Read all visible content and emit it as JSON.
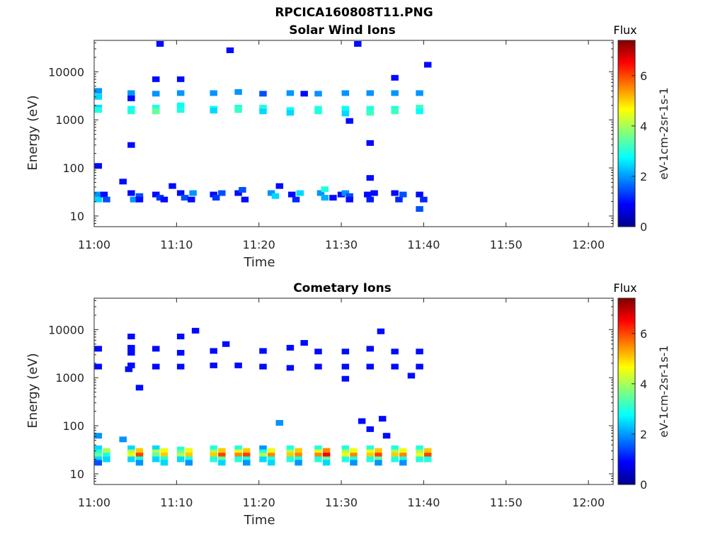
{
  "page_title": "RPCICA160808T11.PNG",
  "colorbar": {
    "label": "Flux",
    "units": "eV-1cm-2sr-1s-1",
    "ticks": [
      "0",
      "2",
      "4",
      "6"
    ],
    "range": [
      0,
      7.4
    ]
  },
  "chart_data": [
    {
      "type": "heatmap",
      "title": "Solar Wind Ions",
      "xlabel": "Time",
      "ylabel": "Energy (eV)",
      "x_ticks": [
        "11:00",
        "11:10",
        "11:20",
        "11:30",
        "11:40",
        "11:50",
        "12:00"
      ],
      "x_range_minutes": [
        0,
        63
      ],
      "y_scale": "log",
      "y_ticks": [
        "10",
        "100",
        "1000",
        "10000"
      ],
      "y_range": [
        6,
        45000
      ],
      "cells": [
        [
          0.5,
          110,
          1
        ],
        [
          0.5,
          28,
          2
        ],
        [
          0.5,
          22,
          2.5
        ],
        [
          1.2,
          28,
          1
        ],
        [
          1.5,
          22,
          1.5
        ],
        [
          3.5,
          52,
          1
        ],
        [
          4.5,
          30,
          1
        ],
        [
          4.8,
          22,
          2
        ],
        [
          5.5,
          26,
          1.5
        ],
        [
          5.5,
          22,
          1
        ],
        [
          4.5,
          300,
          1
        ],
        [
          7.5,
          28,
          1
        ],
        [
          8,
          24,
          1.3
        ],
        [
          8.5,
          22,
          1
        ],
        [
          7.5,
          7000,
          1
        ],
        [
          8,
          38000,
          1
        ],
        [
          9.5,
          42,
          1
        ],
        [
          10.5,
          30,
          1
        ],
        [
          11,
          24,
          1.5
        ],
        [
          11.8,
          22,
          1
        ],
        [
          12,
          30,
          2
        ],
        [
          14.5,
          28,
          1
        ],
        [
          14.8,
          24,
          1.3
        ],
        [
          15.5,
          30,
          1.5
        ],
        [
          16.5,
          28000,
          1
        ],
        [
          17.5,
          30,
          1
        ],
        [
          18,
          35,
          1.5
        ],
        [
          18.3,
          22,
          1
        ],
        [
          21.5,
          30,
          2
        ],
        [
          22,
          26,
          2.5
        ],
        [
          22.5,
          42,
          1
        ],
        [
          24,
          28,
          1
        ],
        [
          24.5,
          22,
          1.2
        ],
        [
          25,
          30,
          2.5
        ],
        [
          27.5,
          30,
          2
        ],
        [
          28,
          36,
          3
        ],
        [
          28,
          24,
          2.2
        ],
        [
          29,
          24,
          1
        ],
        [
          30,
          28,
          1
        ],
        [
          30.5,
          30,
          2
        ],
        [
          31,
          26,
          1.5
        ],
        [
          31,
          22,
          1
        ],
        [
          33.2,
          28,
          1
        ],
        [
          33.5,
          22,
          1.1
        ],
        [
          34,
          30,
          1
        ],
        [
          33.5,
          62,
          1
        ],
        [
          33.5,
          330,
          1
        ],
        [
          36.5,
          30,
          1
        ],
        [
          37,
          22,
          1.2
        ],
        [
          37.5,
          28,
          1.5
        ],
        [
          39.5,
          28,
          1
        ],
        [
          40,
          22,
          1.2
        ],
        [
          39.5,
          14,
          1.5
        ],
        [
          31,
          950,
          1
        ],
        [
          32,
          38000,
          1
        ],
        [
          36.5,
          7500,
          1
        ],
        [
          40.5,
          14000,
          1
        ],
        [
          0.5,
          4000,
          2
        ],
        [
          0.5,
          3000,
          2.5
        ],
        [
          0.5,
          1800,
          2.5
        ],
        [
          0.5,
          1600,
          3
        ],
        [
          4.5,
          3600,
          2
        ],
        [
          4.5,
          2800,
          1
        ],
        [
          4.5,
          1700,
          2.8
        ],
        [
          4.5,
          1500,
          3
        ],
        [
          7.5,
          3500,
          2
        ],
        [
          7.5,
          1800,
          3
        ],
        [
          7.5,
          1500,
          3.5
        ],
        [
          10.5,
          3600,
          2
        ],
        [
          10.5,
          2000,
          2.8
        ],
        [
          10.5,
          1600,
          3
        ],
        [
          10.5,
          7000,
          1
        ],
        [
          14.5,
          3600,
          2
        ],
        [
          14.5,
          1700,
          2.8
        ],
        [
          14.5,
          1550,
          2.5
        ],
        [
          17.5,
          3800,
          2
        ],
        [
          17.5,
          1800,
          3
        ],
        [
          17.5,
          1600,
          3.2
        ],
        [
          20.5,
          3500,
          1.5
        ],
        [
          20.5,
          1800,
          3
        ],
        [
          20.5,
          1500,
          2.5
        ],
        [
          23.8,
          3600,
          2
        ],
        [
          23.8,
          1600,
          2.8
        ],
        [
          23.8,
          1400,
          2.5
        ],
        [
          25.5,
          3500,
          1
        ],
        [
          27.2,
          3500,
          2
        ],
        [
          27.2,
          1700,
          3
        ],
        [
          27.2,
          1500,
          3
        ],
        [
          30.5,
          3600,
          2
        ],
        [
          30.5,
          1700,
          2.8
        ],
        [
          30.5,
          1350,
          2.5
        ],
        [
          33.5,
          3600,
          2
        ],
        [
          33.5,
          1700,
          3
        ],
        [
          33.5,
          1400,
          3.2
        ],
        [
          36.5,
          3600,
          2
        ],
        [
          36.5,
          1700,
          3
        ],
        [
          36.5,
          1500,
          3.2
        ],
        [
          39.5,
          3600,
          2
        ],
        [
          39.5,
          1800,
          3.2
        ],
        [
          39.5,
          1500,
          2.8
        ]
      ]
    },
    {
      "type": "heatmap",
      "title": "Cometary Ions",
      "xlabel": "Time",
      "ylabel": "Energy (eV)",
      "x_ticks": [
        "11:00",
        "11:10",
        "11:20",
        "11:30",
        "11:40",
        "11:50",
        "12:00"
      ],
      "x_range_minutes": [
        0,
        63
      ],
      "y_scale": "log",
      "y_ticks": [
        "10",
        "100",
        "1000",
        "10000"
      ],
      "y_range": [
        6,
        45000
      ],
      "cells": [
        [
          0.5,
          62,
          2
        ],
        [
          3.5,
          52,
          2
        ],
        [
          5.5,
          620,
          1
        ],
        [
          22.5,
          115,
          2
        ],
        [
          32.5,
          125,
          1
        ],
        [
          33.5,
          85,
          1
        ],
        [
          35,
          140,
          1
        ],
        [
          35.5,
          62,
          1
        ],
        [
          12.3,
          9500,
          1
        ],
        [
          16,
          5000,
          1
        ],
        [
          25.5,
          5300,
          1
        ],
        [
          34.8,
          9200,
          1
        ],
        [
          4.5,
          7200,
          1
        ],
        [
          10.5,
          7200,
          1
        ],
        [
          0.5,
          4000,
          1
        ],
        [
          4.5,
          4200,
          1
        ],
        [
          4.5,
          3300,
          1
        ],
        [
          7.5,
          4000,
          1
        ],
        [
          10.5,
          3300,
          1
        ],
        [
          14.5,
          3600,
          1
        ],
        [
          20.5,
          3600,
          1
        ],
        [
          23.8,
          4200,
          1
        ],
        [
          27.2,
          3500,
          1
        ],
        [
          30.5,
          3500,
          1
        ],
        [
          33.5,
          4000,
          1
        ],
        [
          36.5,
          3500,
          1
        ],
        [
          39.5,
          3500,
          1
        ],
        [
          0.5,
          1700,
          1
        ],
        [
          4.5,
          1800,
          1
        ],
        [
          7.5,
          1700,
          1
        ],
        [
          10.5,
          1700,
          1
        ],
        [
          14.5,
          1800,
          1
        ],
        [
          17.5,
          1800,
          1
        ],
        [
          20.5,
          1700,
          1
        ],
        [
          23.8,
          1600,
          1
        ],
        [
          27.2,
          1700,
          1
        ],
        [
          30.5,
          1700,
          1
        ],
        [
          33.5,
          1700,
          1
        ],
        [
          36.5,
          1700,
          1
        ],
        [
          39.5,
          1700,
          1
        ],
        [
          4.2,
          1500,
          1
        ],
        [
          38.5,
          1100,
          1
        ],
        [
          30.5,
          950,
          1
        ],
        [
          0.5,
          34,
          2.5
        ],
        [
          0.5,
          28,
          3
        ],
        [
          0.5,
          24,
          3.5
        ],
        [
          0.5,
          20,
          2.5
        ],
        [
          0.5,
          17,
          1.5
        ],
        [
          1.5,
          30,
          4
        ],
        [
          1.5,
          24,
          3
        ],
        [
          1.5,
          20,
          2.5
        ],
        [
          4.5,
          34,
          2.5
        ],
        [
          4.5,
          28,
          4
        ],
        [
          4.5,
          24,
          4.5
        ],
        [
          4.5,
          20,
          2.5
        ],
        [
          5.5,
          30,
          5
        ],
        [
          5.5,
          24,
          6
        ],
        [
          5.5,
          20,
          3
        ],
        [
          5.5,
          17,
          2
        ],
        [
          7.5,
          34,
          2.5
        ],
        [
          7.5,
          28,
          4
        ],
        [
          7.5,
          24,
          3.5
        ],
        [
          7.5,
          20,
          2.5
        ],
        [
          8.5,
          30,
          4.5
        ],
        [
          8.5,
          24,
          5
        ],
        [
          8.5,
          20,
          3
        ],
        [
          8.5,
          17,
          2.5
        ],
        [
          10.5,
          32,
          3
        ],
        [
          10.5,
          28,
          3.5
        ],
        [
          10.5,
          24,
          4
        ],
        [
          10.5,
          20,
          2.5
        ],
        [
          11.5,
          30,
          4.5
        ],
        [
          11.5,
          24,
          5
        ],
        [
          11.5,
          20,
          3
        ],
        [
          11.5,
          17,
          2
        ],
        [
          14.5,
          34,
          3
        ],
        [
          14.5,
          28,
          4
        ],
        [
          14.5,
          24,
          5
        ],
        [
          14.5,
          20,
          3
        ],
        [
          15.5,
          30,
          5
        ],
        [
          15.5,
          24,
          6
        ],
        [
          15.5,
          20,
          3.5
        ],
        [
          15.5,
          17,
          2.5
        ],
        [
          17.5,
          34,
          3
        ],
        [
          17.5,
          28,
          4.5
        ],
        [
          17.5,
          24,
          5.5
        ],
        [
          17.5,
          20,
          3
        ],
        [
          18.5,
          30,
          5
        ],
        [
          18.5,
          24,
          6
        ],
        [
          18.5,
          20,
          3
        ],
        [
          18.5,
          17,
          2
        ],
        [
          20.5,
          34,
          2
        ],
        [
          20.5,
          28,
          3
        ],
        [
          20.5,
          24,
          4
        ],
        [
          20.5,
          20,
          2.5
        ],
        [
          21.5,
          30,
          4.5
        ],
        [
          21.5,
          24,
          5.5
        ],
        [
          21.5,
          20,
          3
        ],
        [
          21.5,
          17,
          2.5
        ],
        [
          23.8,
          34,
          3
        ],
        [
          23.8,
          28,
          4
        ],
        [
          23.8,
          24,
          5
        ],
        [
          23.8,
          20,
          3
        ],
        [
          24.8,
          30,
          5
        ],
        [
          24.8,
          24,
          5.5
        ],
        [
          24.8,
          20,
          3
        ],
        [
          24.8,
          17,
          2
        ],
        [
          27.2,
          34,
          3
        ],
        [
          27.2,
          28,
          4.5
        ],
        [
          27.2,
          24,
          5.5
        ],
        [
          27.2,
          20,
          3
        ],
        [
          28.2,
          30,
          5.5
        ],
        [
          28.2,
          24,
          6.5
        ],
        [
          28.2,
          20,
          3.5
        ],
        [
          28.2,
          17,
          2.5
        ],
        [
          30.5,
          34,
          3
        ],
        [
          30.5,
          28,
          4
        ],
        [
          30.5,
          24,
          4.5
        ],
        [
          30.5,
          20,
          3
        ],
        [
          31.5,
          30,
          4.5
        ],
        [
          31.5,
          24,
          5.5
        ],
        [
          31.5,
          20,
          3
        ],
        [
          31.5,
          17,
          2
        ],
        [
          33.5,
          34,
          3
        ],
        [
          33.5,
          28,
          4.5
        ],
        [
          33.5,
          24,
          5
        ],
        [
          33.5,
          20,
          3
        ],
        [
          34.5,
          30,
          5
        ],
        [
          34.5,
          24,
          6
        ],
        [
          34.5,
          20,
          3.5
        ],
        [
          34.5,
          17,
          2
        ],
        [
          36.5,
          34,
          3
        ],
        [
          36.5,
          28,
          4
        ],
        [
          36.5,
          24,
          5
        ],
        [
          36.5,
          20,
          3
        ],
        [
          37.5,
          30,
          4.5
        ],
        [
          37.5,
          24,
          5.5
        ],
        [
          37.5,
          20,
          3
        ],
        [
          37.5,
          17,
          2
        ],
        [
          39.5,
          34,
          3
        ],
        [
          39.5,
          28,
          4
        ],
        [
          39.5,
          24,
          4.5
        ],
        [
          39.5,
          20,
          3
        ],
        [
          40.5,
          30,
          5
        ],
        [
          40.5,
          24,
          6
        ],
        [
          40.5,
          20,
          3
        ]
      ]
    }
  ]
}
